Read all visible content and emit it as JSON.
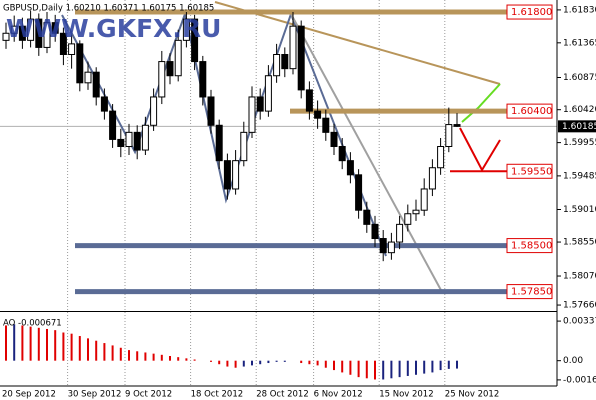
{
  "chart_data": {
    "type": "candlestick",
    "header": "GBPUSD,Daily  1.60210 1.60371 1.60175 1.60185",
    "watermark": "WWW.GKFX.RU",
    "categories": [
      "20 Sep 2012",
      null,
      null,
      null,
      null,
      null,
      null,
      null,
      "30 Sep 2012",
      null,
      null,
      null,
      null,
      null,
      null,
      "9 Oct 2012",
      null,
      null,
      null,
      null,
      null,
      null,
      null,
      "18 Oct 2012",
      null,
      null,
      null,
      null,
      null,
      null,
      null,
      "28 Oct 2012",
      null,
      null,
      null,
      null,
      null,
      null,
      "6 Nov 2012",
      null,
      null,
      null,
      null,
      null,
      null,
      null,
      "15 Nov 2012",
      null,
      null,
      null,
      null,
      null,
      null,
      null,
      "25 Nov 2012",
      null
    ],
    "open": [
      1.614,
      1.615,
      1.616,
      1.614,
      1.617,
      1.613,
      1.6165,
      1.615,
      1.612,
      1.6135,
      1.608,
      1.6095,
      1.606,
      1.604,
      1.6,
      1.599,
      1.601,
      1.5985,
      1.602,
      1.606,
      1.611,
      1.609,
      1.614,
      1.617,
      1.611,
      1.606,
      1.602,
      1.597,
      1.593,
      1.597,
      1.601,
      1.606,
      1.604,
      1.609,
      1.612,
      1.61,
      1.616,
      1.607,
      1.604,
      1.603,
      1.601,
      1.599,
      1.597,
      1.595,
      1.59,
      1.588,
      1.586,
      1.584,
      1.5855,
      1.588,
      1.5895,
      1.59,
      1.593,
      1.596,
      1.599,
      1.6021
    ],
    "high": [
      1.6165,
      1.6175,
      1.6172,
      1.6182,
      1.6178,
      1.618,
      1.6176,
      1.6158,
      1.6148,
      1.614,
      1.611,
      1.6102,
      1.6072,
      1.605,
      1.6015,
      1.6022,
      1.602,
      1.6032,
      1.6072,
      1.6125,
      1.6122,
      1.6155,
      1.618,
      1.6176,
      1.6118,
      1.607,
      1.6028,
      1.598,
      1.5985,
      1.6025,
      1.6075,
      1.6072,
      1.6105,
      1.6135,
      1.613,
      1.618,
      1.6168,
      1.6082,
      1.6055,
      1.6042,
      1.6022,
      1.6002,
      1.5982,
      1.5958,
      1.5912,
      1.5892,
      1.5872,
      1.5868,
      1.5892,
      1.5908,
      1.5915,
      1.5945,
      1.5972,
      1.6002,
      1.6045,
      1.60371
    ],
    "low": [
      1.6128,
      1.6138,
      1.6128,
      1.613,
      1.6118,
      1.6122,
      1.6138,
      1.6105,
      1.61,
      1.6068,
      1.607,
      1.6048,
      1.6028,
      1.5988,
      1.5975,
      1.5978,
      1.5972,
      1.5978,
      1.6012,
      1.605,
      1.6078,
      1.6082,
      1.613,
      1.6098,
      1.6048,
      1.6008,
      1.5958,
      1.5915,
      1.5922,
      1.5962,
      1.6002,
      1.6028,
      1.6032,
      1.608,
      1.6088,
      1.6092,
      1.6058,
      1.6028,
      1.6015,
      1.5998,
      1.5978,
      1.5958,
      1.5938,
      1.5888,
      1.5868,
      1.5848,
      1.5828,
      1.583,
      1.5845,
      1.587,
      1.5885,
      1.5892,
      1.592,
      1.595,
      1.5982,
      1.60175
    ],
    "close": [
      1.615,
      1.616,
      1.614,
      1.617,
      1.613,
      1.6165,
      1.615,
      1.612,
      1.6135,
      1.608,
      1.6095,
      1.606,
      1.604,
      1.6,
      1.599,
      1.601,
      1.5985,
      1.602,
      1.606,
      1.611,
      1.609,
      1.614,
      1.617,
      1.611,
      1.606,
      1.602,
      1.597,
      1.593,
      1.597,
      1.601,
      1.606,
      1.604,
      1.609,
      1.612,
      1.61,
      1.616,
      1.607,
      1.604,
      1.603,
      1.601,
      1.599,
      1.597,
      1.595,
      1.59,
      1.588,
      1.586,
      1.584,
      1.5855,
      1.588,
      1.5895,
      1.59,
      1.593,
      1.596,
      1.599,
      1.6021,
      1.60185
    ],
    "ylim": [
      1.5759,
      1.6197
    ],
    "yticks": [
      {
        "value": 1.6183,
        "label": "1.61830"
      },
      {
        "value": 1.61365,
        "label": "1.61365"
      },
      {
        "value": 1.60875,
        "label": "1.60875"
      },
      {
        "value": 1.6042,
        "label": "1.60420"
      },
      {
        "value": 1.59955,
        "label": "1.59955"
      },
      {
        "value": 1.59485,
        "label": "1.59485"
      },
      {
        "value": 1.5901,
        "label": "1.59010"
      },
      {
        "value": 1.5855,
        "label": "1.58550"
      },
      {
        "value": 1.5807,
        "label": "1.58070"
      },
      {
        "value": 1.5766,
        "label": "1.57660"
      }
    ],
    "current_price": {
      "value": 1.60185,
      "label": "1.60185"
    },
    "levels": [
      {
        "value": 1.618,
        "label": "1.61800",
        "color": "#b8955a"
      },
      {
        "value": 1.604,
        "label": "1.60400",
        "color": "#b8955a"
      },
      {
        "value": 1.5955,
        "label": "1.59550",
        "color": "#e00000"
      },
      {
        "value": 1.585,
        "label": "1.58500",
        "color": "#5a6b95"
      },
      {
        "value": 1.5785,
        "label": "1.57850",
        "color": "#5a6b95"
      }
    ],
    "grid": true,
    "ao": {
      "title": "AO -0.000671",
      "values": [
        0.003,
        0.0031,
        0.003,
        0.0029,
        0.0028,
        0.0027,
        0.0026,
        0.0024,
        0.0023,
        0.0021,
        0.0019,
        0.0017,
        0.0015,
        0.0013,
        0.0011,
        0.0009,
        0.0008,
        0.0007,
        0.0006,
        0.0005,
        0.0004,
        0.0003,
        0.0002,
        0.0001,
        0.0,
        -0.0001,
        -0.0003,
        -0.0005,
        -0.0006,
        -0.0005,
        -0.0004,
        -0.0003,
        -0.0002,
        -0.0001,
        -0.0001,
        0.0,
        -0.0002,
        -0.0003,
        -0.0004,
        -0.0006,
        -0.0008,
        -0.001,
        -0.0012,
        -0.0014,
        -0.0015,
        -0.0016,
        -0.0016,
        -0.0015,
        -0.0014,
        -0.0013,
        -0.0012,
        -0.0011,
        -0.001,
        -0.0008,
        -0.0007,
        -0.000671
      ],
      "ylim": [
        -0.00207,
        0.00406
      ],
      "yticks": [
        0.003371,
        {
          "value": 0,
          "label": "0.00"
        },
        -0.001636
      ],
      "up_color": "#1a237e",
      "down_color": "#e00000"
    }
  }
}
